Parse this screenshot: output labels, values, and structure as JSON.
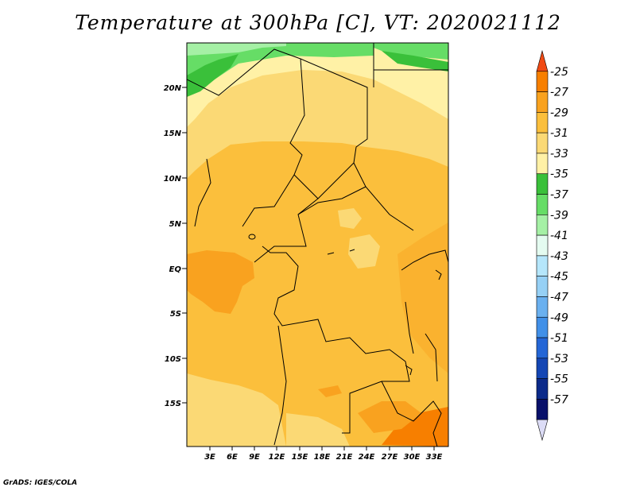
{
  "title": "Temperature at 300hPa [C], VT: 2020021112",
  "credit": "GrADS: IGES/COLA",
  "map": {
    "lat_labels": [
      "20N",
      "15N",
      "10N",
      "5N",
      "EQ",
      "5S",
      "10S",
      "15S"
    ],
    "lon_labels": [
      "3E",
      "6E",
      "9E",
      "12E",
      "15E",
      "18E",
      "21E",
      "24E",
      "27E",
      "30E",
      "33E"
    ]
  },
  "colorbar": {
    "labels": [
      "-25",
      "-27",
      "-29",
      "-31",
      "-33",
      "-35",
      "-37",
      "-39",
      "-41",
      "-43",
      "-45",
      "-47",
      "-49",
      "-51",
      "-53",
      "-55",
      "-57"
    ],
    "colors": [
      "#f04a14",
      "#f77f00",
      "#f9a21f",
      "#fbbf3c",
      "#fbd975",
      "#fff1a6",
      "#3ac03a",
      "#66dd66",
      "#a5f0a5",
      "#e4fbf0",
      "#b5e6fb",
      "#96d0f5",
      "#6ab0ef",
      "#4190e8",
      "#2466d6",
      "#1446b4",
      "#0b2a8a",
      "#08106a",
      "#dcdcf6"
    ]
  },
  "legend_levels": {
    "darkorange": "#f77f00",
    "orange": "#f9a21f",
    "lightorange": "#fbbf3c",
    "yellow": "#fbd975",
    "paleyellow": "#fff1a6",
    "green": "#3ac03a",
    "lightgreen": "#66dd66"
  }
}
